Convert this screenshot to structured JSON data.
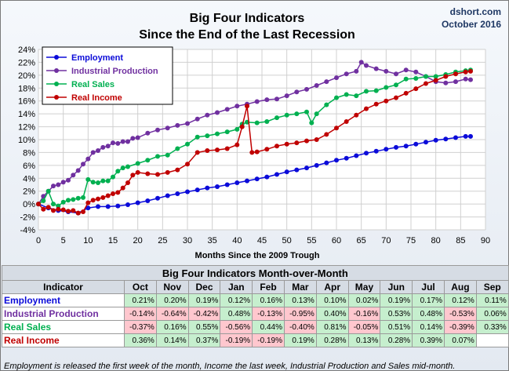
{
  "chart_data": {
    "type": "line",
    "title": "Big Four Indicators",
    "subtitle": "Since the End of the Last Recession",
    "source": "dshort.com",
    "date": "October 2016",
    "xlabel": "Months Since the 2009 Trough",
    "ylabel": "",
    "xlim": [
      0,
      90
    ],
    "ylim": [
      -4,
      24
    ],
    "x_ticks": [
      "0",
      "5",
      "10",
      "15",
      "20",
      "25",
      "30",
      "35",
      "40",
      "45",
      "50",
      "55",
      "60",
      "65",
      "70",
      "75",
      "80",
      "85",
      "90"
    ],
    "y_ticks": [
      "-4%",
      "-2%",
      "0%",
      "2%",
      "4%",
      "6%",
      "8%",
      "10%",
      "12%",
      "14%",
      "16%",
      "18%",
      "20%",
      "22%",
      "24%"
    ],
    "grid": true,
    "legend_position": "top-left",
    "series": [
      {
        "name": "Employment",
        "color": "#0b0bd9",
        "points": [
          [
            0,
            0
          ],
          [
            2,
            -0.6
          ],
          [
            4,
            -1
          ],
          [
            6,
            -1.2
          ],
          [
            8,
            -1.4
          ],
          [
            10,
            -0.6
          ],
          [
            12,
            -0.4
          ],
          [
            14,
            -0.4
          ],
          [
            16,
            -0.3
          ],
          [
            18,
            -0.1
          ],
          [
            20,
            0.2
          ],
          [
            22,
            0.5
          ],
          [
            24,
            0.9
          ],
          [
            26,
            1.3
          ],
          [
            28,
            1.6
          ],
          [
            30,
            1.9
          ],
          [
            32,
            2.2
          ],
          [
            34,
            2.5
          ],
          [
            36,
            2.7
          ],
          [
            38,
            3.0
          ],
          [
            40,
            3.3
          ],
          [
            42,
            3.6
          ],
          [
            44,
            3.9
          ],
          [
            46,
            4.2
          ],
          [
            48,
            4.6
          ],
          [
            50,
            5.0
          ],
          [
            52,
            5.3
          ],
          [
            54,
            5.6
          ],
          [
            56,
            6.0
          ],
          [
            58,
            6.4
          ],
          [
            60,
            6.8
          ],
          [
            62,
            7.1
          ],
          [
            64,
            7.5
          ],
          [
            66,
            7.9
          ],
          [
            68,
            8.2
          ],
          [
            70,
            8.5
          ],
          [
            72,
            8.8
          ],
          [
            74,
            9.0
          ],
          [
            76,
            9.3
          ],
          [
            78,
            9.6
          ],
          [
            80,
            9.9
          ],
          [
            82,
            10.1
          ],
          [
            84,
            10.3
          ],
          [
            86,
            10.5
          ],
          [
            87,
            10.5
          ]
        ]
      },
      {
        "name": "Industrial Production",
        "color": "#7030a0",
        "points": [
          [
            0,
            0
          ],
          [
            1,
            1.2
          ],
          [
            2,
            2.0
          ],
          [
            3,
            2.8
          ],
          [
            4,
            3.0
          ],
          [
            5,
            3.4
          ],
          [
            6,
            3.7
          ],
          [
            7,
            4.5
          ],
          [
            8,
            5.2
          ],
          [
            9,
            6.2
          ],
          [
            10,
            7.0
          ],
          [
            11,
            8.0
          ],
          [
            12,
            8.3
          ],
          [
            13,
            8.8
          ],
          [
            14,
            9.0
          ],
          [
            15,
            9.5
          ],
          [
            16,
            9.4
          ],
          [
            17,
            9.7
          ],
          [
            18,
            9.7
          ],
          [
            19,
            10.2
          ],
          [
            20,
            10.3
          ],
          [
            22,
            11.0
          ],
          [
            24,
            11.5
          ],
          [
            26,
            11.8
          ],
          [
            28,
            12.2
          ],
          [
            30,
            12.5
          ],
          [
            32,
            13.2
          ],
          [
            34,
            13.8
          ],
          [
            36,
            14.2
          ],
          [
            38,
            14.7
          ],
          [
            40,
            15.2
          ],
          [
            42,
            15.5
          ],
          [
            44,
            15.9
          ],
          [
            46,
            16.2
          ],
          [
            48,
            16.3
          ],
          [
            50,
            16.8
          ],
          [
            52,
            17.4
          ],
          [
            54,
            17.8
          ],
          [
            56,
            18.4
          ],
          [
            58,
            19.0
          ],
          [
            60,
            19.6
          ],
          [
            62,
            20.2
          ],
          [
            64,
            20.6
          ],
          [
            65,
            22.0
          ],
          [
            66,
            21.5
          ],
          [
            68,
            21.0
          ],
          [
            70,
            20.6
          ],
          [
            72,
            20.2
          ],
          [
            74,
            20.8
          ],
          [
            76,
            20.5
          ],
          [
            78,
            19.8
          ],
          [
            80,
            19.0
          ],
          [
            82,
            18.8
          ],
          [
            84,
            19.0
          ],
          [
            86,
            19.4
          ],
          [
            87,
            19.3
          ]
        ]
      },
      {
        "name": "Real Sales",
        "color": "#00b050",
        "points": [
          [
            0,
            0
          ],
          [
            1,
            0.5
          ],
          [
            2,
            2.0
          ],
          [
            3,
            0
          ],
          [
            4,
            -0.3
          ],
          [
            5,
            0.3
          ],
          [
            6,
            0.6
          ],
          [
            7,
            0.7
          ],
          [
            8,
            0.9
          ],
          [
            9,
            1.0
          ],
          [
            10,
            3.8
          ],
          [
            11,
            3.4
          ],
          [
            12,
            3.3
          ],
          [
            13,
            3.6
          ],
          [
            14,
            3.6
          ],
          [
            15,
            4.2
          ],
          [
            16,
            5.1
          ],
          [
            17,
            5.6
          ],
          [
            18,
            5.8
          ],
          [
            20,
            6.3
          ],
          [
            22,
            6.8
          ],
          [
            24,
            7.4
          ],
          [
            26,
            7.6
          ],
          [
            28,
            8.6
          ],
          [
            30,
            9.3
          ],
          [
            32,
            10.4
          ],
          [
            34,
            10.6
          ],
          [
            36,
            10.9
          ],
          [
            38,
            11.2
          ],
          [
            40,
            11.6
          ],
          [
            41,
            12.4
          ],
          [
            42,
            12.7
          ],
          [
            44,
            12.6
          ],
          [
            46,
            12.8
          ],
          [
            48,
            13.4
          ],
          [
            50,
            13.8
          ],
          [
            52,
            14.0
          ],
          [
            54,
            14.3
          ],
          [
            55,
            12.6
          ],
          [
            56,
            14.0
          ],
          [
            58,
            15.4
          ],
          [
            60,
            16.5
          ],
          [
            62,
            17.0
          ],
          [
            64,
            16.8
          ],
          [
            66,
            17.5
          ],
          [
            68,
            17.6
          ],
          [
            70,
            18.1
          ],
          [
            72,
            18.5
          ],
          [
            74,
            19.4
          ],
          [
            76,
            19.5
          ],
          [
            78,
            19.8
          ],
          [
            80,
            19.8
          ],
          [
            82,
            20.1
          ],
          [
            84,
            20.5
          ],
          [
            86,
            20.7
          ],
          [
            87,
            20.8
          ]
        ]
      },
      {
        "name": "Real Income",
        "color": "#c00000",
        "points": [
          [
            0,
            0
          ],
          [
            1,
            -0.8
          ],
          [
            2,
            -0.5
          ],
          [
            3,
            -1.0
          ],
          [
            4,
            -0.8
          ],
          [
            5,
            -0.9
          ],
          [
            6,
            -1.1
          ],
          [
            7,
            -1.0
          ],
          [
            8,
            -1.4
          ],
          [
            9,
            -1.2
          ],
          [
            10,
            0.2
          ],
          [
            11,
            0.6
          ],
          [
            12,
            0.8
          ],
          [
            13,
            1.0
          ],
          [
            14,
            1.3
          ],
          [
            15,
            1.6
          ],
          [
            16,
            1.8
          ],
          [
            17,
            2.5
          ],
          [
            18,
            3.3
          ],
          [
            19,
            4.5
          ],
          [
            20,
            4.9
          ],
          [
            22,
            4.7
          ],
          [
            24,
            4.6
          ],
          [
            26,
            4.9
          ],
          [
            28,
            5.3
          ],
          [
            30,
            6.2
          ],
          [
            32,
            8.0
          ],
          [
            34,
            8.3
          ],
          [
            36,
            8.4
          ],
          [
            38,
            8.6
          ],
          [
            40,
            9.2
          ],
          [
            41,
            12.0
          ],
          [
            42,
            15.2
          ],
          [
            43,
            8.0
          ],
          [
            44,
            8.1
          ],
          [
            46,
            8.5
          ],
          [
            48,
            9.0
          ],
          [
            50,
            9.3
          ],
          [
            52,
            9.5
          ],
          [
            54,
            9.8
          ],
          [
            56,
            10.0
          ],
          [
            58,
            10.8
          ],
          [
            60,
            11.8
          ],
          [
            62,
            12.8
          ],
          [
            64,
            13.8
          ],
          [
            66,
            14.8
          ],
          [
            68,
            15.5
          ],
          [
            70,
            16.0
          ],
          [
            72,
            16.5
          ],
          [
            74,
            17.2
          ],
          [
            76,
            17.9
          ],
          [
            78,
            18.7
          ],
          [
            80,
            19.2
          ],
          [
            82,
            19.8
          ],
          [
            84,
            20.2
          ],
          [
            86,
            20.5
          ],
          [
            87,
            20.6
          ]
        ]
      }
    ]
  },
  "table": {
    "title": "Big Four Indicators Month-over-Month",
    "header_label": "Indicator",
    "months": [
      "Oct",
      "Nov",
      "Dec",
      "Jan",
      "Feb",
      "Mar",
      "Apr",
      "May",
      "Jun",
      "Jul",
      "Aug",
      "Sep"
    ],
    "rows": [
      {
        "name": "Employment",
        "color": "#0b0bd9",
        "values": [
          "0.21%",
          "0.20%",
          "0.19%",
          "0.12%",
          "0.16%",
          "0.13%",
          "0.10%",
          "0.02%",
          "0.19%",
          "0.17%",
          "0.12%",
          "0.11%"
        ]
      },
      {
        "name": "Industrial Production",
        "color": "#7030a0",
        "values": [
          "-0.14%",
          "-0.64%",
          "-0.42%",
          "0.48%",
          "-0.13%",
          "-0.95%",
          "0.40%",
          "-0.16%",
          "0.53%",
          "0.48%",
          "-0.53%",
          "0.06%"
        ]
      },
      {
        "name": "Real Sales",
        "color": "#00b050",
        "values": [
          "-0.37%",
          "0.16%",
          "0.55%",
          "-0.56%",
          "0.44%",
          "-0.40%",
          "0.81%",
          "-0.05%",
          "0.51%",
          "0.14%",
          "-0.39%",
          "0.33%"
        ]
      },
      {
        "name": "Real Income",
        "color": "#c00000",
        "values": [
          "0.36%",
          "0.14%",
          "0.37%",
          "-0.19%",
          "-0.19%",
          "0.19%",
          "0.28%",
          "0.13%",
          "0.28%",
          "0.39%",
          "0.07%",
          ""
        ]
      }
    ]
  },
  "footnote": "Employment is released the first week of the month, Income the last week, Industrial Production and Sales mid-month."
}
